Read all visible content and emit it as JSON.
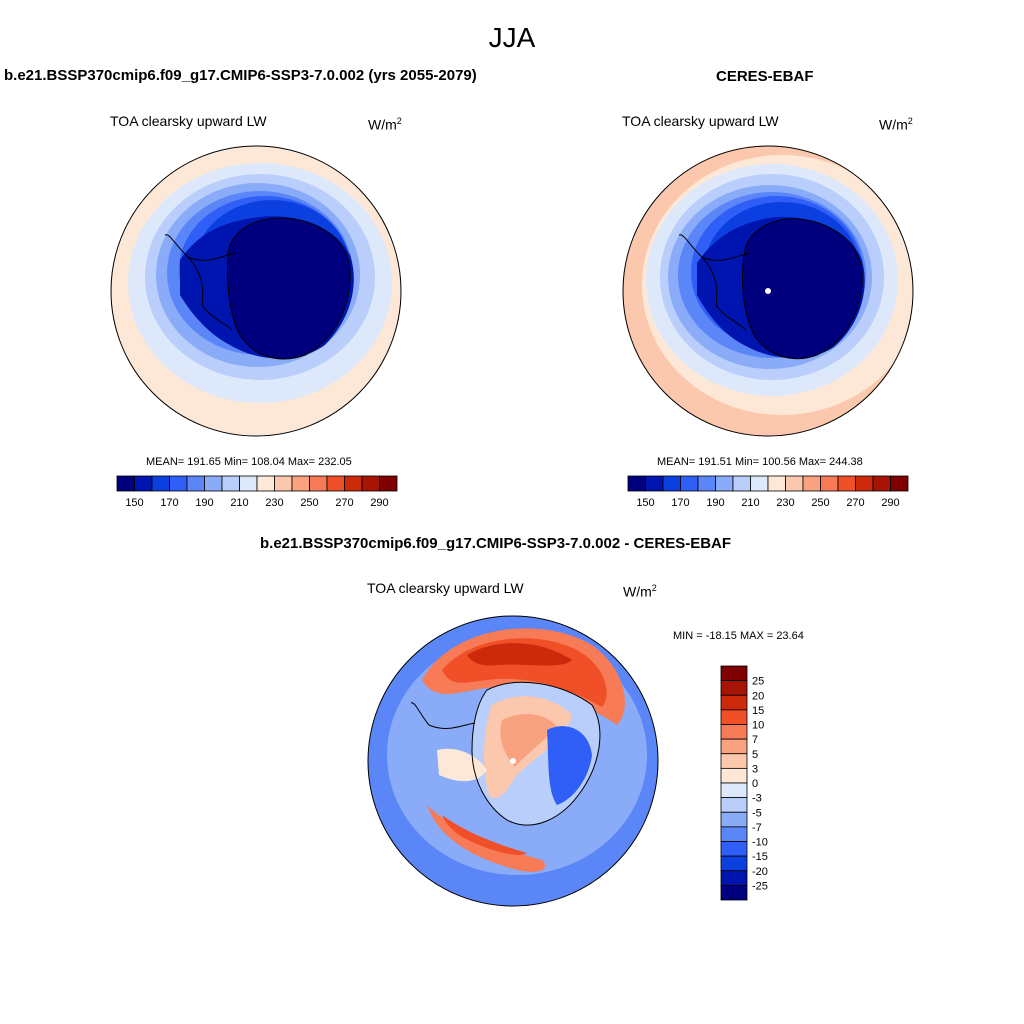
{
  "main_title": "JJA",
  "panels": [
    {
      "title": "b.e21.BSSP370cmip6.f09_g17.CMIP6-SSP3-7.0.002 (yrs 2055-2079)",
      "variable": "TOA clearsky upward LW",
      "units_base": "W/m",
      "units_exp": "2",
      "stats": "MEAN= 191.65  Min= 108.04  Max= 232.05"
    },
    {
      "title": "CERES-EBAF",
      "variable": "TOA clearsky upward LW",
      "units_base": "W/m",
      "units_exp": "2",
      "stats": "MEAN= 191.51  Min= 100.56  Max= 244.38"
    },
    {
      "title": "b.e21.BSSP370cmip6.f09_g17.CMIP6-SSP3-7.0.002 - CERES-EBAF",
      "variable": "TOA clearsky upward LW",
      "units_base": "W/m",
      "units_exp": "2",
      "stats": "MIN = -18.15 MAX =  23.64"
    }
  ],
  "colorbar_abs": {
    "colors": [
      "#00007f",
      "#0015b0",
      "#0c3fe0",
      "#2f5ff6",
      "#5b86f7",
      "#8aabf8",
      "#b9cefa",
      "#dde9fb",
      "#fde8d8",
      "#fbc7ad",
      "#f8a27f",
      "#f67b56",
      "#f04f28",
      "#cc2a0a",
      "#a51405",
      "#7f0000"
    ],
    "tick_labels": [
      "150",
      "170",
      "190",
      "210",
      "230",
      "250",
      "270",
      "290"
    ]
  },
  "colorbar_diff": {
    "colors": [
      "#7f0000",
      "#a51405",
      "#cc2a0a",
      "#f04f28",
      "#f67b56",
      "#f8a27f",
      "#fbc7ad",
      "#fde8d8",
      "#dde9fb",
      "#b9cefa",
      "#8aabf8",
      "#5b86f7",
      "#2f5ff6",
      "#0c3fe0",
      "#0015b0",
      "#00007f"
    ],
    "tick_labels": [
      "25",
      "20",
      "15",
      "10",
      "7",
      "5",
      "3",
      "0",
      "-3",
      "-5",
      "-7",
      "-10",
      "-15",
      "-20",
      "-25"
    ]
  }
}
